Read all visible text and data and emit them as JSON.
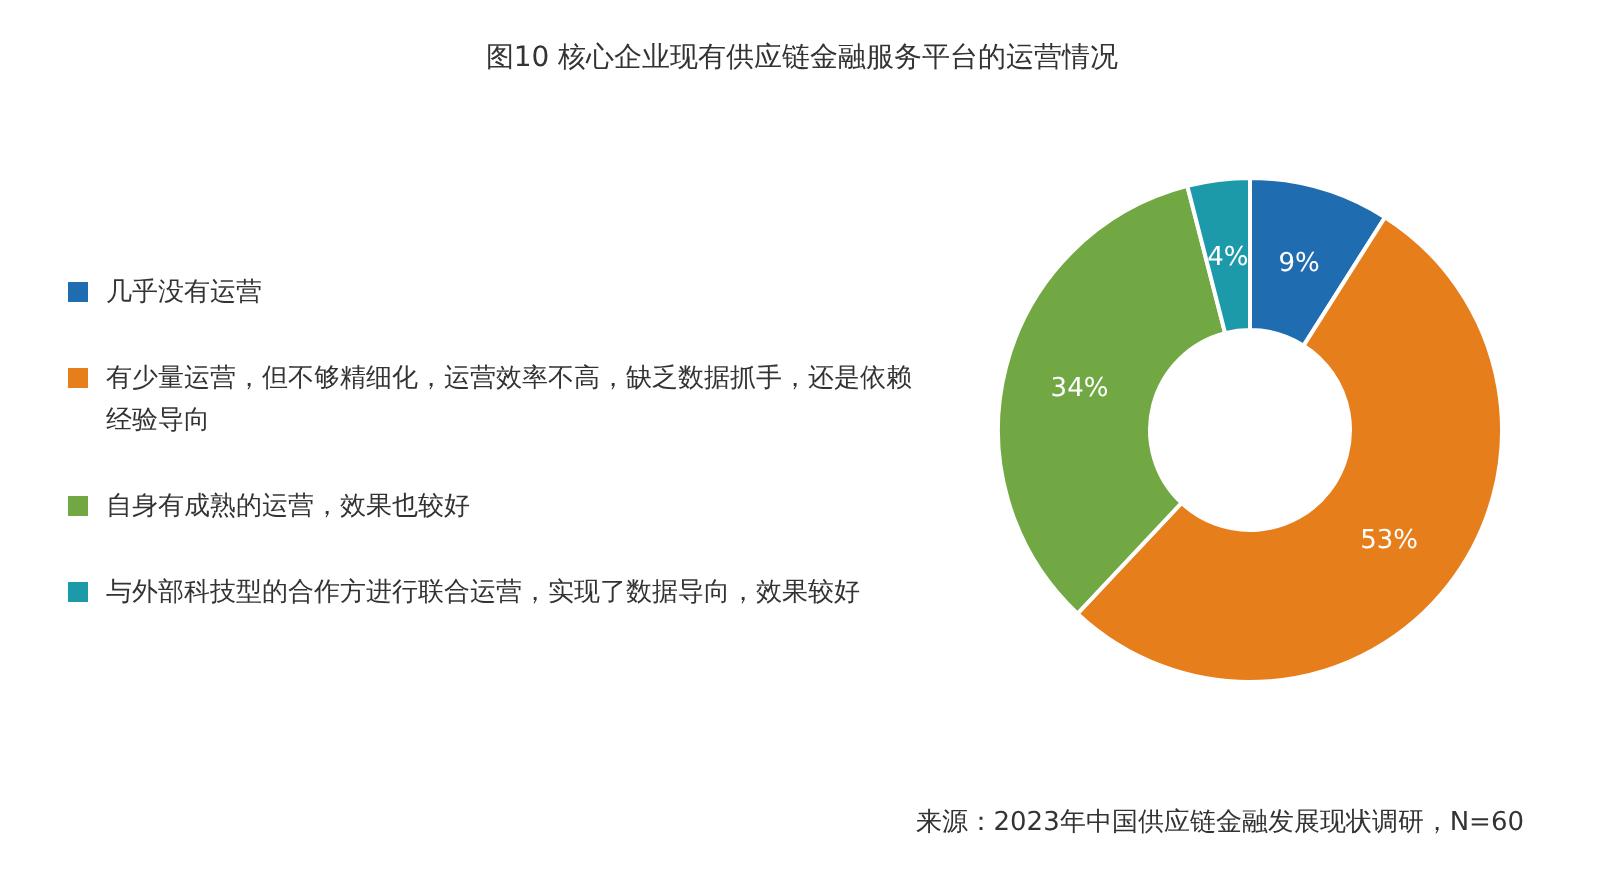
{
  "chart_data": {
    "type": "donut",
    "title": "图10 核心企业现有供应链金融服务平台的运营情况",
    "categories": [
      "几乎没有运营",
      "有少量运营，但不够精细化，运营效率不高，缺乏数据抓手，还是依赖经验导向",
      "自身有成熟的运营，效果也较好",
      "与外部科技型的合作方进行联合运营，实现了数据导向，效果较好"
    ],
    "values": [
      9,
      53,
      34,
      4
    ],
    "colors": [
      "#1f6cb0",
      "#e67e1c",
      "#72a844",
      "#1d9aa9"
    ],
    "value_labels": [
      "9%",
      "53%",
      "34%",
      "4%"
    ],
    "legend": "left",
    "annotations": [
      "来源：2023年中国供应链金融发展现状调研，N=60"
    ]
  }
}
